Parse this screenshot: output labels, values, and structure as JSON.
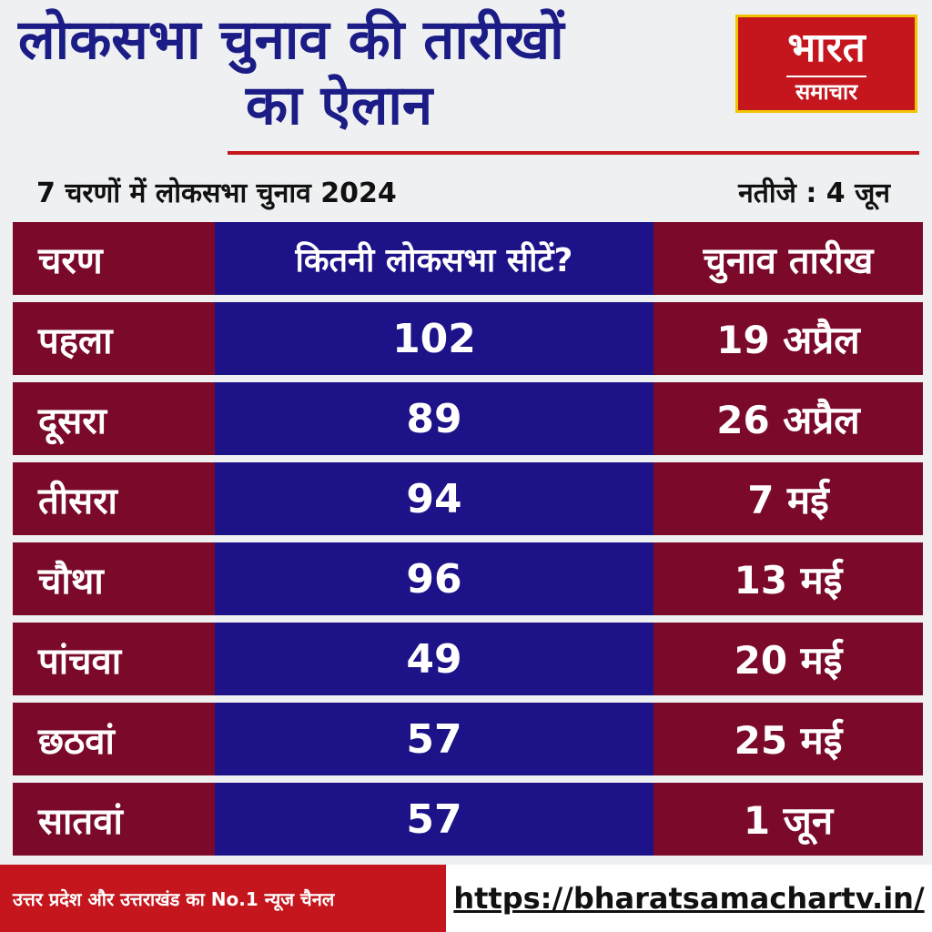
{
  "title": {
    "line1": "लोकसभा चुनाव की तारीखों",
    "line2": "का ऐलान"
  },
  "logo": {
    "main": "भारत",
    "sub": "समाचार"
  },
  "subtitle": "7 चरणों में लोकसभा चुनाव 2024",
  "result": "नतीजे : 4 जून",
  "table": {
    "headers": {
      "phase": "चरण",
      "seats": "कितनी लोकसभा सीटें?",
      "date": "चुनाव तारीख"
    },
    "rows": [
      {
        "phase": "पहला",
        "seats": "102",
        "date": "19 अप्रैल"
      },
      {
        "phase": "दूसरा",
        "seats": "89",
        "date": "26 अप्रैल"
      },
      {
        "phase": "तीसरा",
        "seats": "94",
        "date": "7 मई"
      },
      {
        "phase": "चौथा",
        "seats": "96",
        "date": "13 मई"
      },
      {
        "phase": "पांचवा",
        "seats": "49",
        "date": "20 मई"
      },
      {
        "phase": "छठवां",
        "seats": "57",
        "date": "25 मई"
      },
      {
        "phase": "सातवां",
        "seats": "57",
        "date": "1 जून"
      }
    ]
  },
  "footer": {
    "tagline": "उत्तर प्रदेश और उत्तराखंड का No.1 न्यूज चैनल",
    "url": "https://bharatsamachartv.in/"
  },
  "colors": {
    "maroon": "#7b0a2a",
    "navy": "#1d1288",
    "red": "#c4161c",
    "title_blue": "#1b1c86"
  }
}
